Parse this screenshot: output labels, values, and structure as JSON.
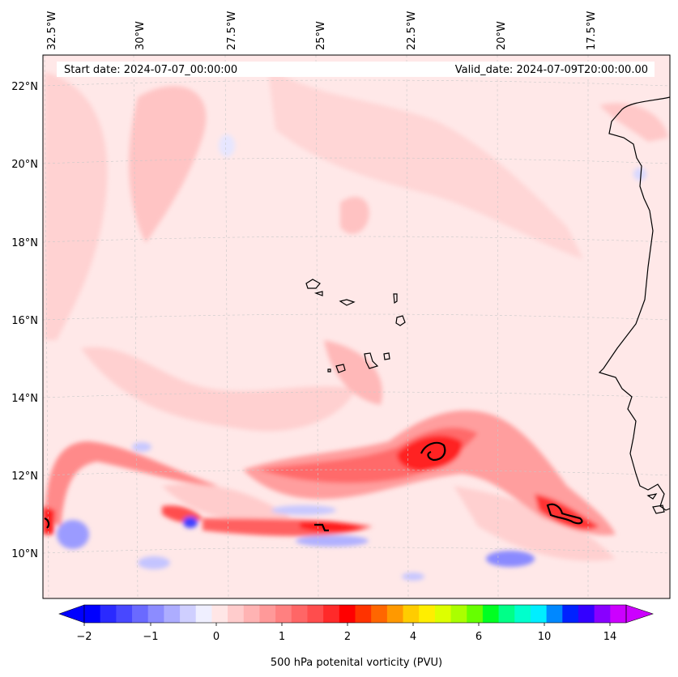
{
  "header": {
    "start_date": "Start date: 2024-07-07_00:00:00",
    "valid_date": "Valid_date: 2024-07-09T20:00:00.00"
  },
  "longitude_labels": [
    "32.5°W",
    "30°W",
    "27.5°W",
    "25°W",
    "22.5°W",
    "20°W",
    "17.5°W"
  ],
  "latitude_labels": [
    "22°N",
    "20°N",
    "18°N",
    "16°N",
    "14°N",
    "12°N",
    "10°N"
  ],
  "colorbar": {
    "title": "500 hPa potenital vorticity (PVU)",
    "tick_labels": [
      "−2",
      "−1",
      "0",
      "1",
      "2",
      "4",
      "6",
      "10",
      "14"
    ],
    "colors": [
      "#0000ff",
      "#2a2aff",
      "#4848ff",
      "#6a6aff",
      "#8c8cff",
      "#adadff",
      "#cfcfff",
      "#efefff",
      "#ffe6e6",
      "#ffcccc",
      "#ffb3b3",
      "#ff9999",
      "#ff8080",
      "#ff6666",
      "#ff4d4d",
      "#ff2a2a",
      "#ff0000",
      "#ff3300",
      "#ff6600",
      "#ff9900",
      "#ffcc00",
      "#ffee00",
      "#ddff00",
      "#aaff00",
      "#66ff00",
      "#00ff22",
      "#00ff88",
      "#00ffcc",
      "#00eeff",
      "#0088ff",
      "#0022ff",
      "#3300ff",
      "#8800ff",
      "#cc00ff"
    ]
  },
  "colors": {
    "background": "#ffe8e8",
    "coastline": "#000000",
    "gridline": "#c8c8c8"
  }
}
